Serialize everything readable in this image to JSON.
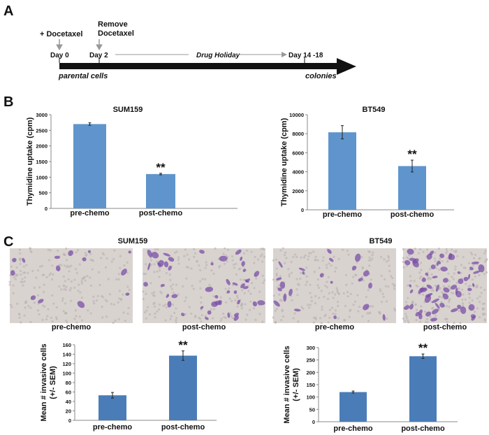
{
  "panels": {
    "a": "A",
    "b": "B",
    "c": "C"
  },
  "timeline": {
    "add_drug": "+ Docetaxel",
    "remove_drug_line1": "Remove",
    "remove_drug_line2": "Docetaxel",
    "day0": "Day 0",
    "day2": "Day 2",
    "drug_holiday": "Drug Holiday",
    "day_end": "Day 14 -18",
    "start_label": "parental cells",
    "end_label": "colonies"
  },
  "micrographs": {
    "sum159_title": "SUM159",
    "bt549_title": "BT549",
    "labels": [
      "pre-chemo",
      "post-chemo",
      "pre-chemo",
      "post-chemo"
    ]
  },
  "colors": {
    "bar_b": "#5f95cc",
    "bar_c": "#4a7db8",
    "stain": "#7a4fa8"
  },
  "chart_data": [
    {
      "type": "bar",
      "title": "SUM159",
      "ylabel": "Thymidine uptake (cpm)",
      "ylabel2": "",
      "categories": [
        "pre-chemo",
        "post-chemo"
      ],
      "values": [
        2700,
        1100
      ],
      "errors": [
        40,
        25
      ],
      "significance": [
        "",
        "**"
      ],
      "ylim": [
        0,
        3000
      ],
      "yticks": [
        0,
        500,
        1000,
        1500,
        2000,
        2500,
        3000
      ]
    },
    {
      "type": "bar",
      "title": "BT549",
      "ylabel": "Thymidine uptake (cpm)",
      "ylabel2": "",
      "categories": [
        "pre-chemo",
        "post-chemo"
      ],
      "values": [
        8150,
        4600
      ],
      "errors": [
        700,
        620
      ],
      "significance": [
        "",
        "**"
      ],
      "ylim": [
        0,
        10000
      ],
      "yticks": [
        0,
        2000,
        4000,
        6000,
        8000,
        10000
      ]
    },
    {
      "type": "bar",
      "title": "",
      "ylabel": "Mean # invasive cells",
      "ylabel2": "(+/- SEM)",
      "categories": [
        "pre-chemo",
        "post-chemo"
      ],
      "values": [
        53,
        137
      ],
      "errors": [
        6,
        10
      ],
      "significance": [
        "",
        "**"
      ],
      "ylim": [
        0,
        160
      ],
      "yticks": [
        0,
        20,
        40,
        60,
        80,
        100,
        120,
        140,
        160
      ]
    },
    {
      "type": "bar",
      "title": "",
      "ylabel": "Mean # invasive cells",
      "ylabel2": "(+/- SEM)",
      "categories": [
        "pre-chemo",
        "post-chemo"
      ],
      "values": [
        120,
        265
      ],
      "errors": [
        4,
        9
      ],
      "significance": [
        "",
        "**"
      ],
      "ylim": [
        0,
        300
      ],
      "yticks": [
        0,
        50,
        100,
        150,
        200,
        250,
        300
      ]
    }
  ]
}
